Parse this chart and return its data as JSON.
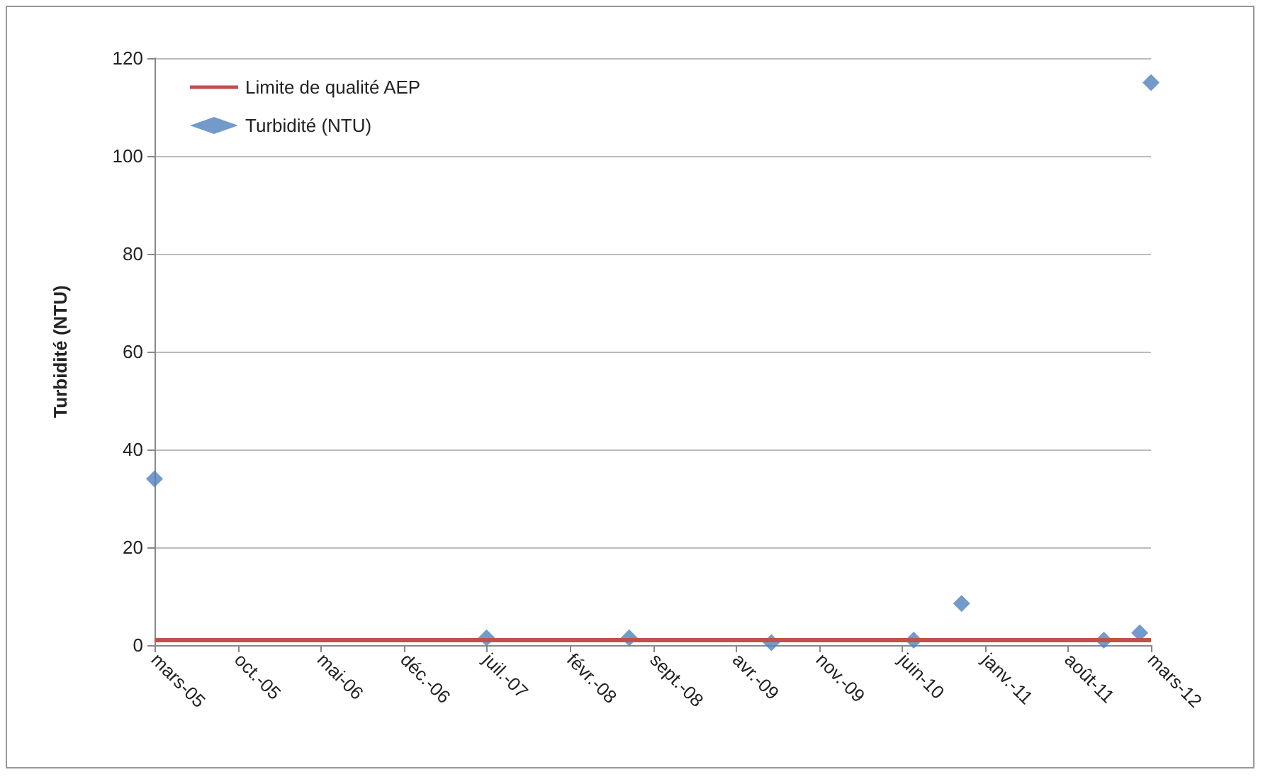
{
  "chart_data": {
    "type": "scatter",
    "ylabel": "Turbidité (NTU)",
    "xlim": [
      "2005-03",
      "2012-03"
    ],
    "xticks": [
      {
        "value": "2005-03",
        "label": "mars-05"
      },
      {
        "value": "2005-10",
        "label": "oct.-05"
      },
      {
        "value": "2006-05",
        "label": "mai-06"
      },
      {
        "value": "2006-12",
        "label": "déc.-06"
      },
      {
        "value": "2007-07",
        "label": "juil.-07"
      },
      {
        "value": "2008-02",
        "label": "févr.-08"
      },
      {
        "value": "2008-09",
        "label": "sept.-08"
      },
      {
        "value": "2009-04",
        "label": "avr.-09"
      },
      {
        "value": "2009-11",
        "label": "nov.-09"
      },
      {
        "value": "2010-06",
        "label": "juin-10"
      },
      {
        "value": "2011-01",
        "label": "janv.-11"
      },
      {
        "value": "2011-08",
        "label": "août-11"
      },
      {
        "value": "2012-03",
        "label": "mars-12"
      }
    ],
    "ylim": [
      0,
      120
    ],
    "yticks": [
      0,
      20,
      40,
      60,
      80,
      100,
      120
    ],
    "grid": "y",
    "legend": "top left",
    "series": [
      {
        "name": "Limite de qualité AEP",
        "type": "line",
        "color": "#c0504d",
        "marker": "none",
        "x": [
          "2005-03",
          "2012-03"
        ],
        "values": [
          1,
          1
        ]
      },
      {
        "name": "Turbidité (NTU)",
        "color": "#4f81bd",
        "marker": "diamond",
        "x": [
          "2005-03",
          "2007-07",
          "2008-07",
          "2009-07",
          "2010-07",
          "2010-11",
          "2011-11",
          "2012-02",
          "2012-03"
        ],
        "values": [
          34,
          1.5,
          1.5,
          0.5,
          1,
          8.5,
          1,
          2.5,
          115
        ]
      }
    ]
  }
}
